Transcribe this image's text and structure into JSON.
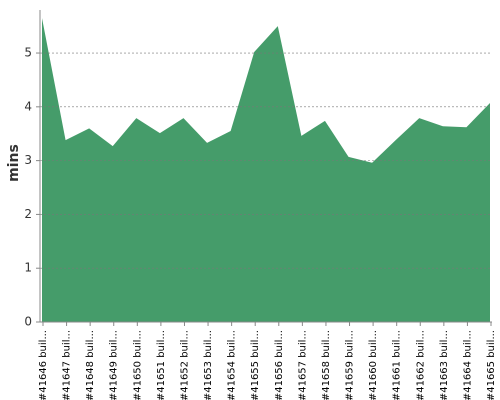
{
  "chart_data": {
    "type": "area",
    "y_label": "mins",
    "categories": [
      "#41646 buil...",
      "#41647 buil...",
      "#41648 buil...",
      "#41649 buil...",
      "#41650 buil...",
      "#41651 buil...",
      "#41652 buil...",
      "#41653 buil...",
      "#41654 buil...",
      "#41655 buil...",
      "#41656 buil...",
      "#41657 buil...",
      "#41658 buil...",
      "#41659 buil...",
      "#41660 buil...",
      "#41661 buil...",
      "#41662 buil...",
      "#41663 buil...",
      "#41664 buil...",
      "#41665 buil..."
    ],
    "values": [
      5.65,
      3.38,
      3.6,
      3.27,
      3.79,
      3.51,
      3.79,
      3.33,
      3.55,
      5.02,
      5.5,
      3.46,
      3.74,
      3.07,
      2.96,
      3.38,
      3.79,
      3.64,
      3.62,
      4.07
    ],
    "color": "#459c6a",
    "ylim": [
      0,
      5.8
    ],
    "yticks": [
      0,
      1,
      2,
      3,
      4,
      5
    ],
    "grid": true
  }
}
